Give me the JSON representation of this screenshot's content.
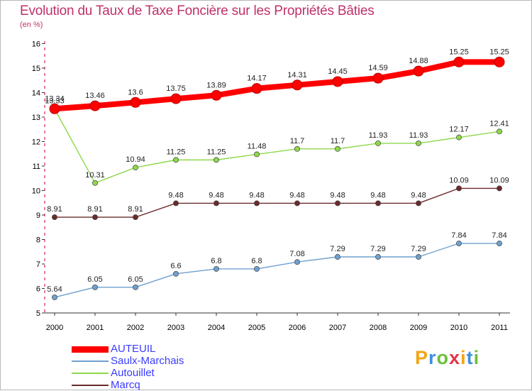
{
  "header": {
    "title": "Evolution du Taux de Taxe Foncière sur les Propriétés Bâties",
    "unit": "(en %)"
  },
  "chart_data": {
    "type": "line",
    "title": "Evolution du Taux de Taxe Foncière sur les Propriétés Bâties",
    "ylabel": "(en %)",
    "xlabel": "",
    "x": [
      "2000",
      "2001",
      "2002",
      "2003",
      "2004",
      "2005",
      "2006",
      "2007",
      "2008",
      "2009",
      "2010",
      "2011"
    ],
    "ylim": [
      5,
      16
    ],
    "yticks": [
      5,
      6,
      7,
      8,
      9,
      10,
      11,
      12,
      13,
      14,
      15,
      16
    ],
    "grid": false,
    "legend_position": "bottom-left",
    "series": [
      {
        "name": "AUTEUIL",
        "color": "#ff0000",
        "values": [
          13.34,
          13.46,
          13.6,
          13.75,
          13.89,
          14.17,
          14.31,
          14.45,
          14.59,
          14.88,
          15.25,
          15.25
        ],
        "labels": [
          "13.34",
          "13.46",
          "13.6",
          "13.75",
          "13.89",
          "14.17",
          "14.31",
          "14.45",
          "14.59",
          "14.88",
          "15.25",
          "15.25"
        ]
      },
      {
        "name": "Saulx-Marchais",
        "color": "#6fa0cf",
        "values": [
          5.64,
          6.05,
          6.05,
          6.6,
          6.8,
          6.8,
          7.08,
          7.29,
          7.29,
          7.29,
          7.84,
          7.84
        ],
        "labels": [
          "5.64",
          "6.05",
          "6.05",
          "6.6",
          "6.8",
          "6.8",
          "7.08",
          "7.29",
          "7.29",
          "7.29",
          "7.84",
          "7.84"
        ]
      },
      {
        "name": "Autouillet",
        "color": "#8ed84a",
        "values": [
          13.33,
          10.31,
          10.94,
          11.25,
          11.25,
          11.48,
          11.7,
          11.7,
          11.93,
          11.93,
          12.17,
          12.41
        ],
        "labels": [
          "13.33",
          "10.31",
          "10.94",
          "11.25",
          "11.25",
          "11.48",
          "11.7",
          "11.7",
          "11.93",
          "11.93",
          "12.17",
          "12.41"
        ]
      },
      {
        "name": "Marcq",
        "color": "#6b2a2a",
        "values": [
          8.91,
          8.91,
          8.91,
          9.48,
          9.48,
          9.48,
          9.48,
          9.48,
          9.48,
          9.48,
          10.09,
          10.09
        ],
        "labels": [
          "8.91",
          "8.91",
          "8.91",
          "9.48",
          "9.48",
          "9.48",
          "9.48",
          "9.48",
          "9.48",
          "9.48",
          "10.09",
          "10.09"
        ]
      }
    ]
  },
  "legend": {
    "items": [
      {
        "label": "AUTEUIL",
        "color": "#ff0000",
        "text_color": "#3a3aff"
      },
      {
        "label": "Saulx-Marchais",
        "color": "#6fa0cf",
        "text_color": "#3a3aff"
      },
      {
        "label": "Autouillet",
        "color": "#8ed84a",
        "text_color": "#3a3aff"
      },
      {
        "label": "Marcq",
        "color": "#6b2a2a",
        "text_color": "#3a3aff"
      }
    ]
  },
  "logo": {
    "text": "Proxiti",
    "letter_colors": [
      "#f2a516",
      "#3f8fdf",
      "#6cbf3a",
      "#e4344a",
      "#f2a516",
      "#3f8fdf",
      "#6cbf3a"
    ]
  }
}
